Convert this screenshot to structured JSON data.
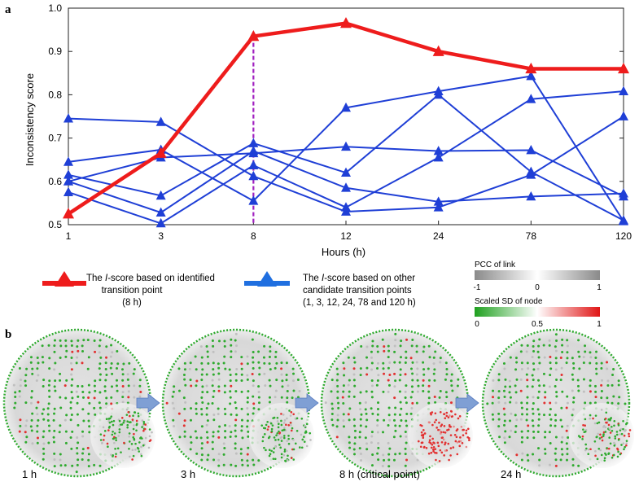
{
  "panel_a_label": "a",
  "panel_b_label": "b",
  "chart_data": {
    "type": "line",
    "title": "",
    "xlabel": "Hours (h)",
    "ylabel": "Inconsistency score",
    "categories": [
      "1",
      "3",
      "8",
      "12",
      "24",
      "78",
      "120"
    ],
    "ylim": [
      0.5,
      1.0
    ],
    "yticks": [
      "0.5",
      "0.6",
      "0.7",
      "0.8",
      "0.9",
      "1.0"
    ],
    "critical_index": 2,
    "highlight_series": {
      "name": "The I-score based on identified transition point (8 h)",
      "color": "#ee1c1c",
      "values": [
        0.525,
        0.665,
        0.935,
        0.965,
        0.9,
        0.86,
        0.86
      ]
    },
    "series": [
      {
        "name": "Candidate 1 h",
        "color": "#1f3fd6",
        "values": [
          0.745,
          0.737,
          0.612,
          0.53,
          0.54,
          0.615,
          0.75
        ]
      },
      {
        "name": "Candidate 3 h",
        "color": "#1f3fd6",
        "values": [
          0.645,
          0.673,
          0.555,
          0.77,
          0.808,
          0.843,
          0.508
        ]
      },
      {
        "name": "Candidate 12 h",
        "color": "#1f3fd6",
        "values": [
          0.615,
          0.567,
          0.688,
          0.62,
          0.8,
          0.622,
          0.51
        ]
      },
      {
        "name": "Candidate 24 h",
        "color": "#1f3fd6",
        "values": [
          0.6,
          0.655,
          0.665,
          0.68,
          0.67,
          0.672,
          0.565
        ]
      },
      {
        "name": "Candidate 78 h",
        "color": "#1f3fd6",
        "values": [
          0.575,
          0.503,
          0.637,
          0.54,
          0.655,
          0.79,
          0.808
        ]
      },
      {
        "name": "Candidate 120 h",
        "color": "#1f3fd6",
        "values": [
          0.6,
          0.528,
          0.67,
          0.585,
          0.553,
          0.565,
          0.572
        ]
      }
    ]
  },
  "legend": {
    "red_line1_pre": "The ",
    "red_line1_italic": "I",
    "red_line1_post": "-score based on identified",
    "red_line2": "transition point",
    "red_line3": "(8 h)",
    "blue_line1_pre": "The ",
    "blue_line1_italic": "I",
    "blue_line1_post": "-score based on other",
    "blue_line2": "candidate transition points",
    "blue_line3": "(1, 3, 12, 24, 78 and 120 h)"
  },
  "color_scales": {
    "pcc_title": "PCC of link",
    "pcc_ticks": [
      "-1",
      "0",
      "1"
    ],
    "sd_title": "Scaled SD of node",
    "sd_ticks": [
      "0",
      "0.5",
      "1"
    ]
  },
  "networks": [
    {
      "label": "1 h",
      "red_ratio": 0.15
    },
    {
      "label": "3 h",
      "red_ratio": 0.12
    },
    {
      "label": "8 h  (critical point)",
      "red_ratio": 0.25
    },
    {
      "label": "24 h",
      "red_ratio": 0.2
    }
  ],
  "colors": {
    "red": "#ee1c1c",
    "blue": "#1f3fd6",
    "critical_line": "#a020c0",
    "arrow": "#7f9fd4",
    "node_green": "#2eaa2e",
    "node_red": "#e23030"
  }
}
